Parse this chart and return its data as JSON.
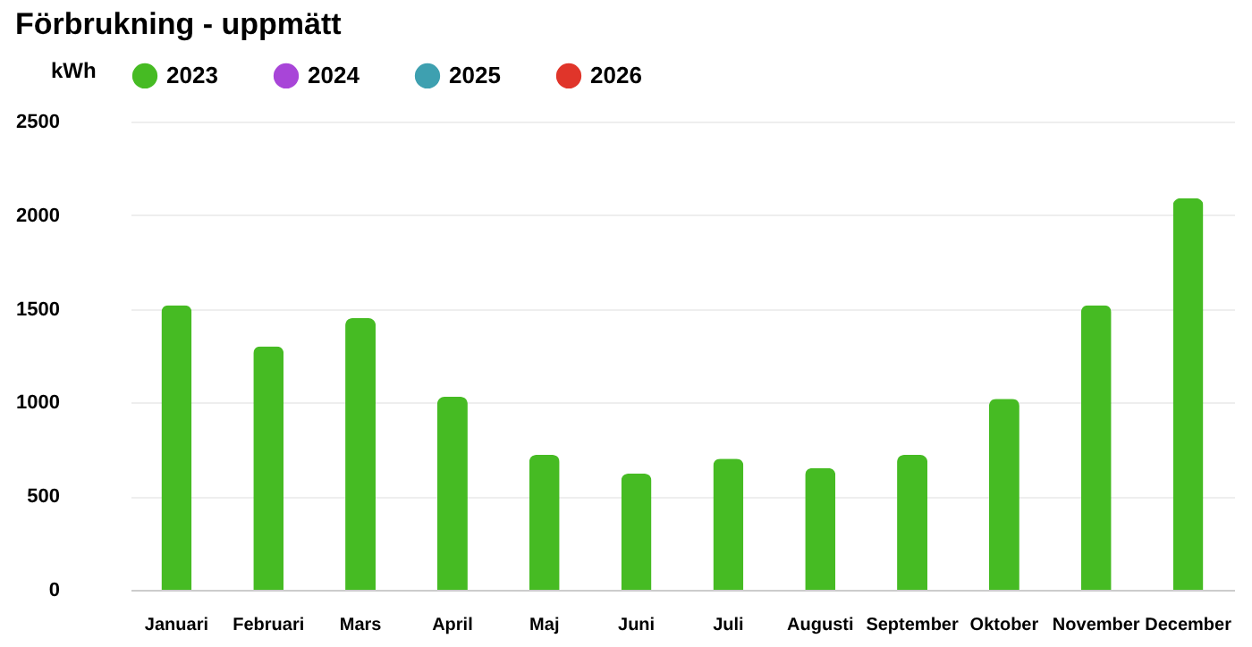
{
  "chart_data": {
    "type": "bar",
    "title": "Förbrukning - uppmätt",
    "ylabel": "kWh",
    "categories": [
      "Januari",
      "Februari",
      "Mars",
      "April",
      "Maj",
      "Juni",
      "Juli",
      "Augusti",
      "September",
      "Oktober",
      "November",
      "December"
    ],
    "series": [
      {
        "name": "2023",
        "color": "#46bb23",
        "values": [
          1520,
          1300,
          1450,
          1030,
          720,
          620,
          700,
          650,
          720,
          1020,
          1520,
          2090
        ]
      },
      {
        "name": "2024",
        "color": "#a845d8",
        "values": [
          null,
          null,
          null,
          null,
          null,
          null,
          null,
          null,
          null,
          null,
          null,
          null
        ]
      },
      {
        "name": "2025",
        "color": "#3ea0b0",
        "values": [
          null,
          null,
          null,
          null,
          null,
          null,
          null,
          null,
          null,
          null,
          null,
          null
        ]
      },
      {
        "name": "2026",
        "color": "#e0352a",
        "values": [
          null,
          null,
          null,
          null,
          null,
          null,
          null,
          null,
          null,
          null,
          null,
          null
        ]
      }
    ],
    "ylim": [
      0,
      2500
    ],
    "yticks": [
      0,
      500,
      1000,
      1500,
      2000,
      2500
    ],
    "grid": "y",
    "legend": "top"
  }
}
